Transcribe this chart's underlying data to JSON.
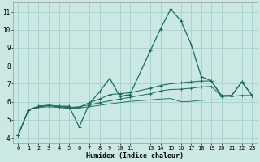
{
  "xlabel": "Humidex (Indice chaleur)",
  "bg_color": "#cce8e4",
  "grid_color": "#aad4cf",
  "line_color": "#1a6b5e",
  "xlim": [
    -0.5,
    23.5
  ],
  "ylim": [
    3.7,
    11.5
  ],
  "xticks": [
    0,
    1,
    2,
    3,
    4,
    5,
    6,
    7,
    8,
    9,
    10,
    11,
    13,
    14,
    15,
    16,
    17,
    18,
    19,
    20,
    21,
    22,
    23
  ],
  "yticks": [
    4,
    5,
    6,
    7,
    8,
    9,
    10,
    11
  ],
  "series1_x": [
    0,
    1,
    2,
    3,
    4,
    5,
    6,
    7,
    8,
    9,
    10,
    11,
    13,
    14,
    15,
    16,
    17,
    18,
    19,
    20,
    21,
    22,
    23
  ],
  "series1_y": [
    4.15,
    5.55,
    5.75,
    5.8,
    5.75,
    5.75,
    4.6,
    5.9,
    6.55,
    7.3,
    6.3,
    6.4,
    8.85,
    10.05,
    11.15,
    10.5,
    9.2,
    7.4,
    7.15,
    6.3,
    6.35,
    7.1,
    6.35
  ],
  "series2_x": [
    0,
    1,
    2,
    3,
    4,
    5,
    6,
    7,
    8,
    9,
    10,
    11,
    13,
    14,
    15,
    16,
    17,
    18,
    19,
    20,
    21,
    22,
    23
  ],
  "series2_y": [
    4.15,
    5.55,
    5.75,
    5.8,
    5.75,
    5.65,
    5.7,
    5.95,
    6.15,
    6.4,
    6.45,
    6.5,
    6.75,
    6.9,
    7.0,
    7.05,
    7.1,
    7.15,
    7.15,
    6.35,
    6.35,
    7.1,
    6.35
  ],
  "series3_x": [
    0,
    1,
    2,
    3,
    4,
    5,
    6,
    7,
    8,
    9,
    10,
    11,
    13,
    14,
    15,
    16,
    17,
    18,
    19,
    20,
    21,
    22,
    23
  ],
  "series3_y": [
    4.15,
    5.55,
    5.72,
    5.78,
    5.73,
    5.68,
    5.72,
    5.82,
    5.95,
    6.05,
    6.15,
    6.25,
    6.45,
    6.6,
    6.68,
    6.7,
    6.75,
    6.82,
    6.85,
    6.3,
    6.3,
    6.35,
    6.35
  ],
  "series4_x": [
    0,
    1,
    2,
    3,
    4,
    5,
    6,
    7,
    8,
    9,
    10,
    11,
    13,
    14,
    15,
    16,
    17,
    18,
    19,
    20,
    21,
    22,
    23
  ],
  "series4_y": [
    4.15,
    5.55,
    5.68,
    5.72,
    5.68,
    5.63,
    5.65,
    5.72,
    5.8,
    5.88,
    5.95,
    6.02,
    6.1,
    6.15,
    6.18,
    6.0,
    6.02,
    6.08,
    6.1,
    6.1,
    6.1,
    6.1,
    6.1
  ]
}
